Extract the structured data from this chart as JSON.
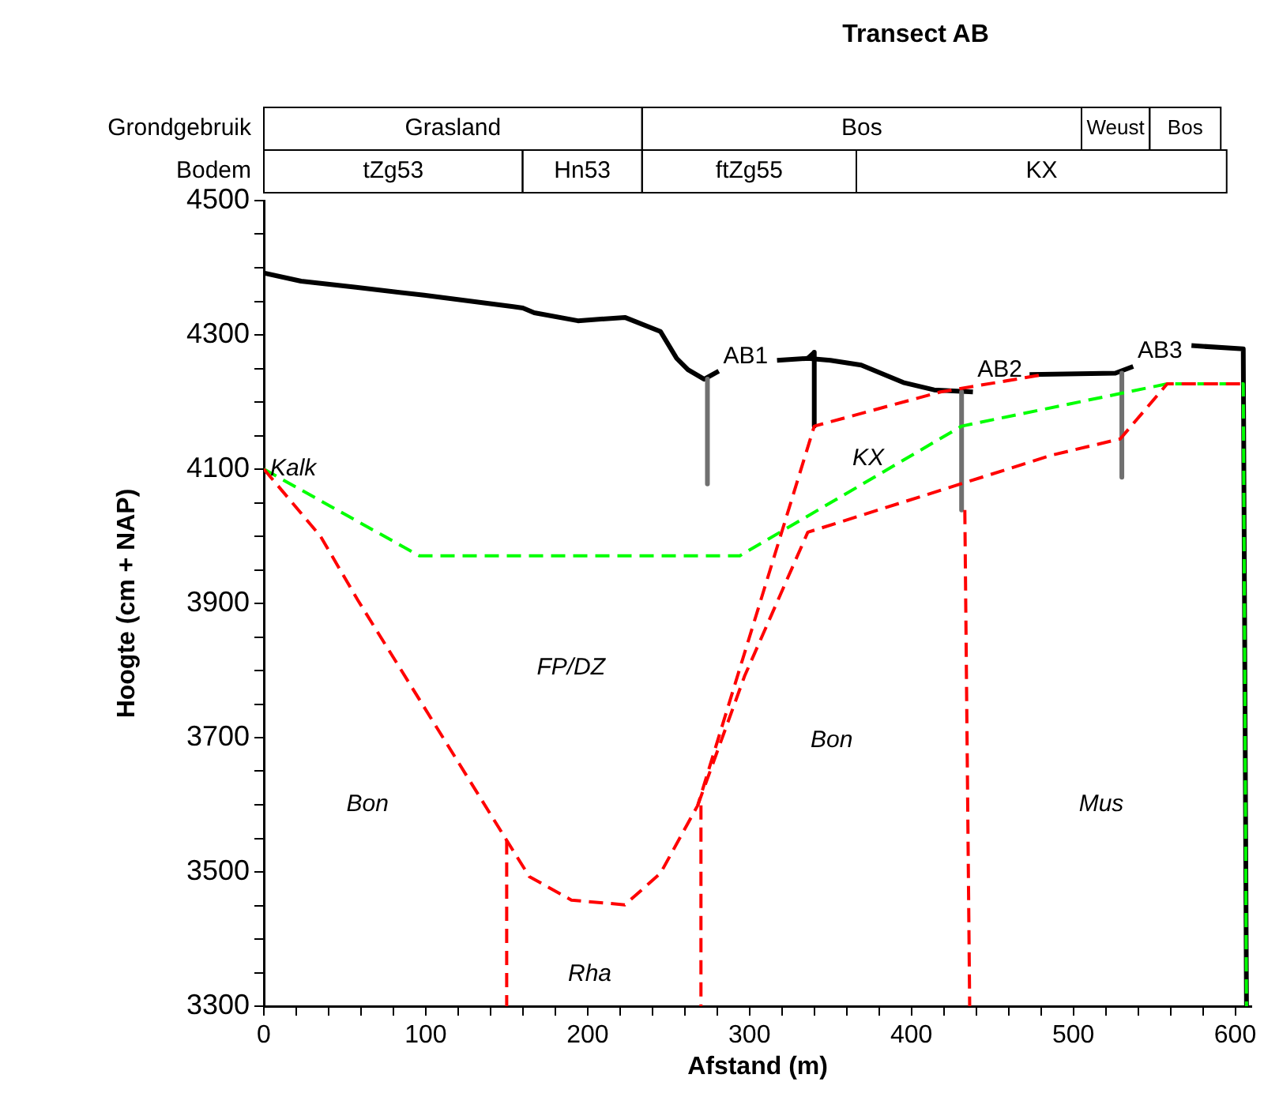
{
  "chart_data": {
    "type": "line",
    "title": "Transect AB",
    "xlabel": "Afstand (m)",
    "ylabel": "Hoogte (cm + NAP)",
    "line_style": "solid",
    "xlim": [
      0,
      610
    ],
    "ylim": [
      3300,
      4500
    ],
    "xticks": [
      0,
      {
        "value": 20,
        "label": null
      },
      {
        "value": 40,
        "label": null
      },
      {
        "value": 60,
        "label": null
      },
      {
        "value": 80,
        "label": null
      },
      100,
      {
        "value": 120,
        "label": null
      },
      {
        "value": 140,
        "label": null
      },
      {
        "value": 160,
        "label": null
      },
      {
        "value": 180,
        "label": null
      },
      200,
      {
        "value": 220,
        "label": null
      },
      {
        "value": 240,
        "label": null
      },
      {
        "value": 260,
        "label": null
      },
      {
        "value": 280,
        "label": null
      },
      300,
      {
        "value": 320,
        "label": null
      },
      {
        "value": 340,
        "label": null
      },
      {
        "value": 360,
        "label": null
      },
      {
        "value": 380,
        "label": null
      },
      400,
      {
        "value": 420,
        "label": null
      },
      {
        "value": 440,
        "label": null
      },
      {
        "value": 460,
        "label": null
      },
      {
        "value": 480,
        "label": null
      },
      500,
      {
        "value": 520,
        "label": null
      },
      {
        "value": 540,
        "label": null
      },
      {
        "value": 560,
        "label": null
      },
      {
        "value": 580,
        "label": null
      },
      600
    ],
    "yticks": [
      3300,
      {
        "value": 3350,
        "label": null
      },
      {
        "value": 3400,
        "label": null
      },
      {
        "value": 3450,
        "label": null
      },
      3500,
      {
        "value": 3550,
        "label": null
      },
      {
        "value": 3600,
        "label": null
      },
      {
        "value": 3650,
        "label": null
      },
      3700,
      {
        "value": 3750,
        "label": null
      },
      {
        "value": 3800,
        "label": null
      },
      {
        "value": 3850,
        "label": null
      },
      3900,
      {
        "value": 3950,
        "label": null
      },
      {
        "value": 4000,
        "label": null
      },
      {
        "value": 4050,
        "label": null
      },
      4100,
      {
        "value": 4150,
        "label": null
      },
      {
        "value": 4200,
        "label": null
      },
      {
        "value": 4250,
        "label": null
      },
      4300,
      {
        "value": 4350,
        "label": null
      },
      {
        "value": 4400,
        "label": null
      },
      {
        "value": 4450,
        "label": null
      },
      4500
    ],
    "series": [
      {
        "color": "#000000",
        "x": [
          0,
          23,
          57,
          99,
          154,
          160,
          167,
          194,
          223,
          245,
          255,
          262,
          272,
          281,
          300,
          317,
          336,
          350,
          369,
          395,
          414,
          438,
          455,
          473,
          526,
          537,
          555,
          573,
          605,
          607
        ],
        "values": [
          4392,
          4380,
          4371,
          4359,
          4342,
          4340,
          4333,
          4321,
          4326,
          4305,
          4265,
          4248,
          4234,
          4246,
          null,
          4262,
          4265,
          4262,
          4255,
          4229,
          4218,
          4215,
          null,
          4241,
          4243,
          4253,
          null,
          4284,
          4279,
          3300
        ]
      },
      {
        "color": "#000000",
        "x": [
          336,
          340,
          340
        ],
        "values": [
          4265,
          4274,
          4164
        ]
      },
      {
        "name": "AB1",
        "color": "#707070",
        "x": [
          274,
          274
        ],
        "values": [
          4234,
          4078
        ]
      },
      {
        "name": "AB2",
        "color": "#707070",
        "x": [
          431,
          431
        ],
        "values": [
          4215,
          4039
        ]
      },
      {
        "name": "AB3",
        "color": "#707070",
        "x": [
          530,
          530
        ],
        "values": [
          4243,
          4088
        ]
      },
      {
        "color": "#00ff00",
        "line_style": "dashed",
        "x": [
          0,
          96,
          294,
          431,
          558,
          605,
          607
        ],
        "values": [
          4100,
          3971,
          3971,
          4164,
          4227,
          4227,
          3300
        ]
      },
      {
        "color": "#ff0000",
        "line_style": "dashed",
        "x": [
          0,
          35,
          58,
          150,
          164,
          190,
          223,
          245,
          268,
          307,
          340,
          418,
          482
        ],
        "values": [
          4100,
          4000,
          3905,
          3547,
          3493,
          3458,
          3451,
          3498,
          3599,
          3905,
          4164,
          4215,
          4241
        ]
      },
      {
        "color": "#ff0000",
        "line_style": "dashed",
        "x": [
          268,
          297,
          336,
          487,
          529,
          558,
          605
        ],
        "values": [
          3599,
          3792,
          4006,
          4121,
          4145,
          4227,
          4227
        ]
      },
      {
        "color": "#ff0000",
        "line_style": "dashed",
        "x": [
          150,
          150
        ],
        "values": [
          3547,
          3300
        ]
      },
      {
        "color": "#ff0000",
        "line_style": "dashed",
        "x": [
          270,
          270
        ],
        "values": [
          3599,
          3300
        ]
      },
      {
        "color": "#ff0000",
        "line_style": "dashed",
        "x": [
          433,
          436
        ],
        "values": [
          4039,
          3300
        ]
      }
    ],
    "annotations": [
      "Grondgebruik",
      "Bodem",
      "Grasland",
      "Bos",
      "Weust",
      "Bos",
      "tZg53",
      "Hn53",
      "ftZg55",
      "KX",
      "KX",
      "FP/DZ",
      "Bon",
      "Bon",
      "Mus",
      "Rha",
      {
        "text": "Kalk",
        "x": 0,
        "y": 4100
      }
    ]
  }
}
